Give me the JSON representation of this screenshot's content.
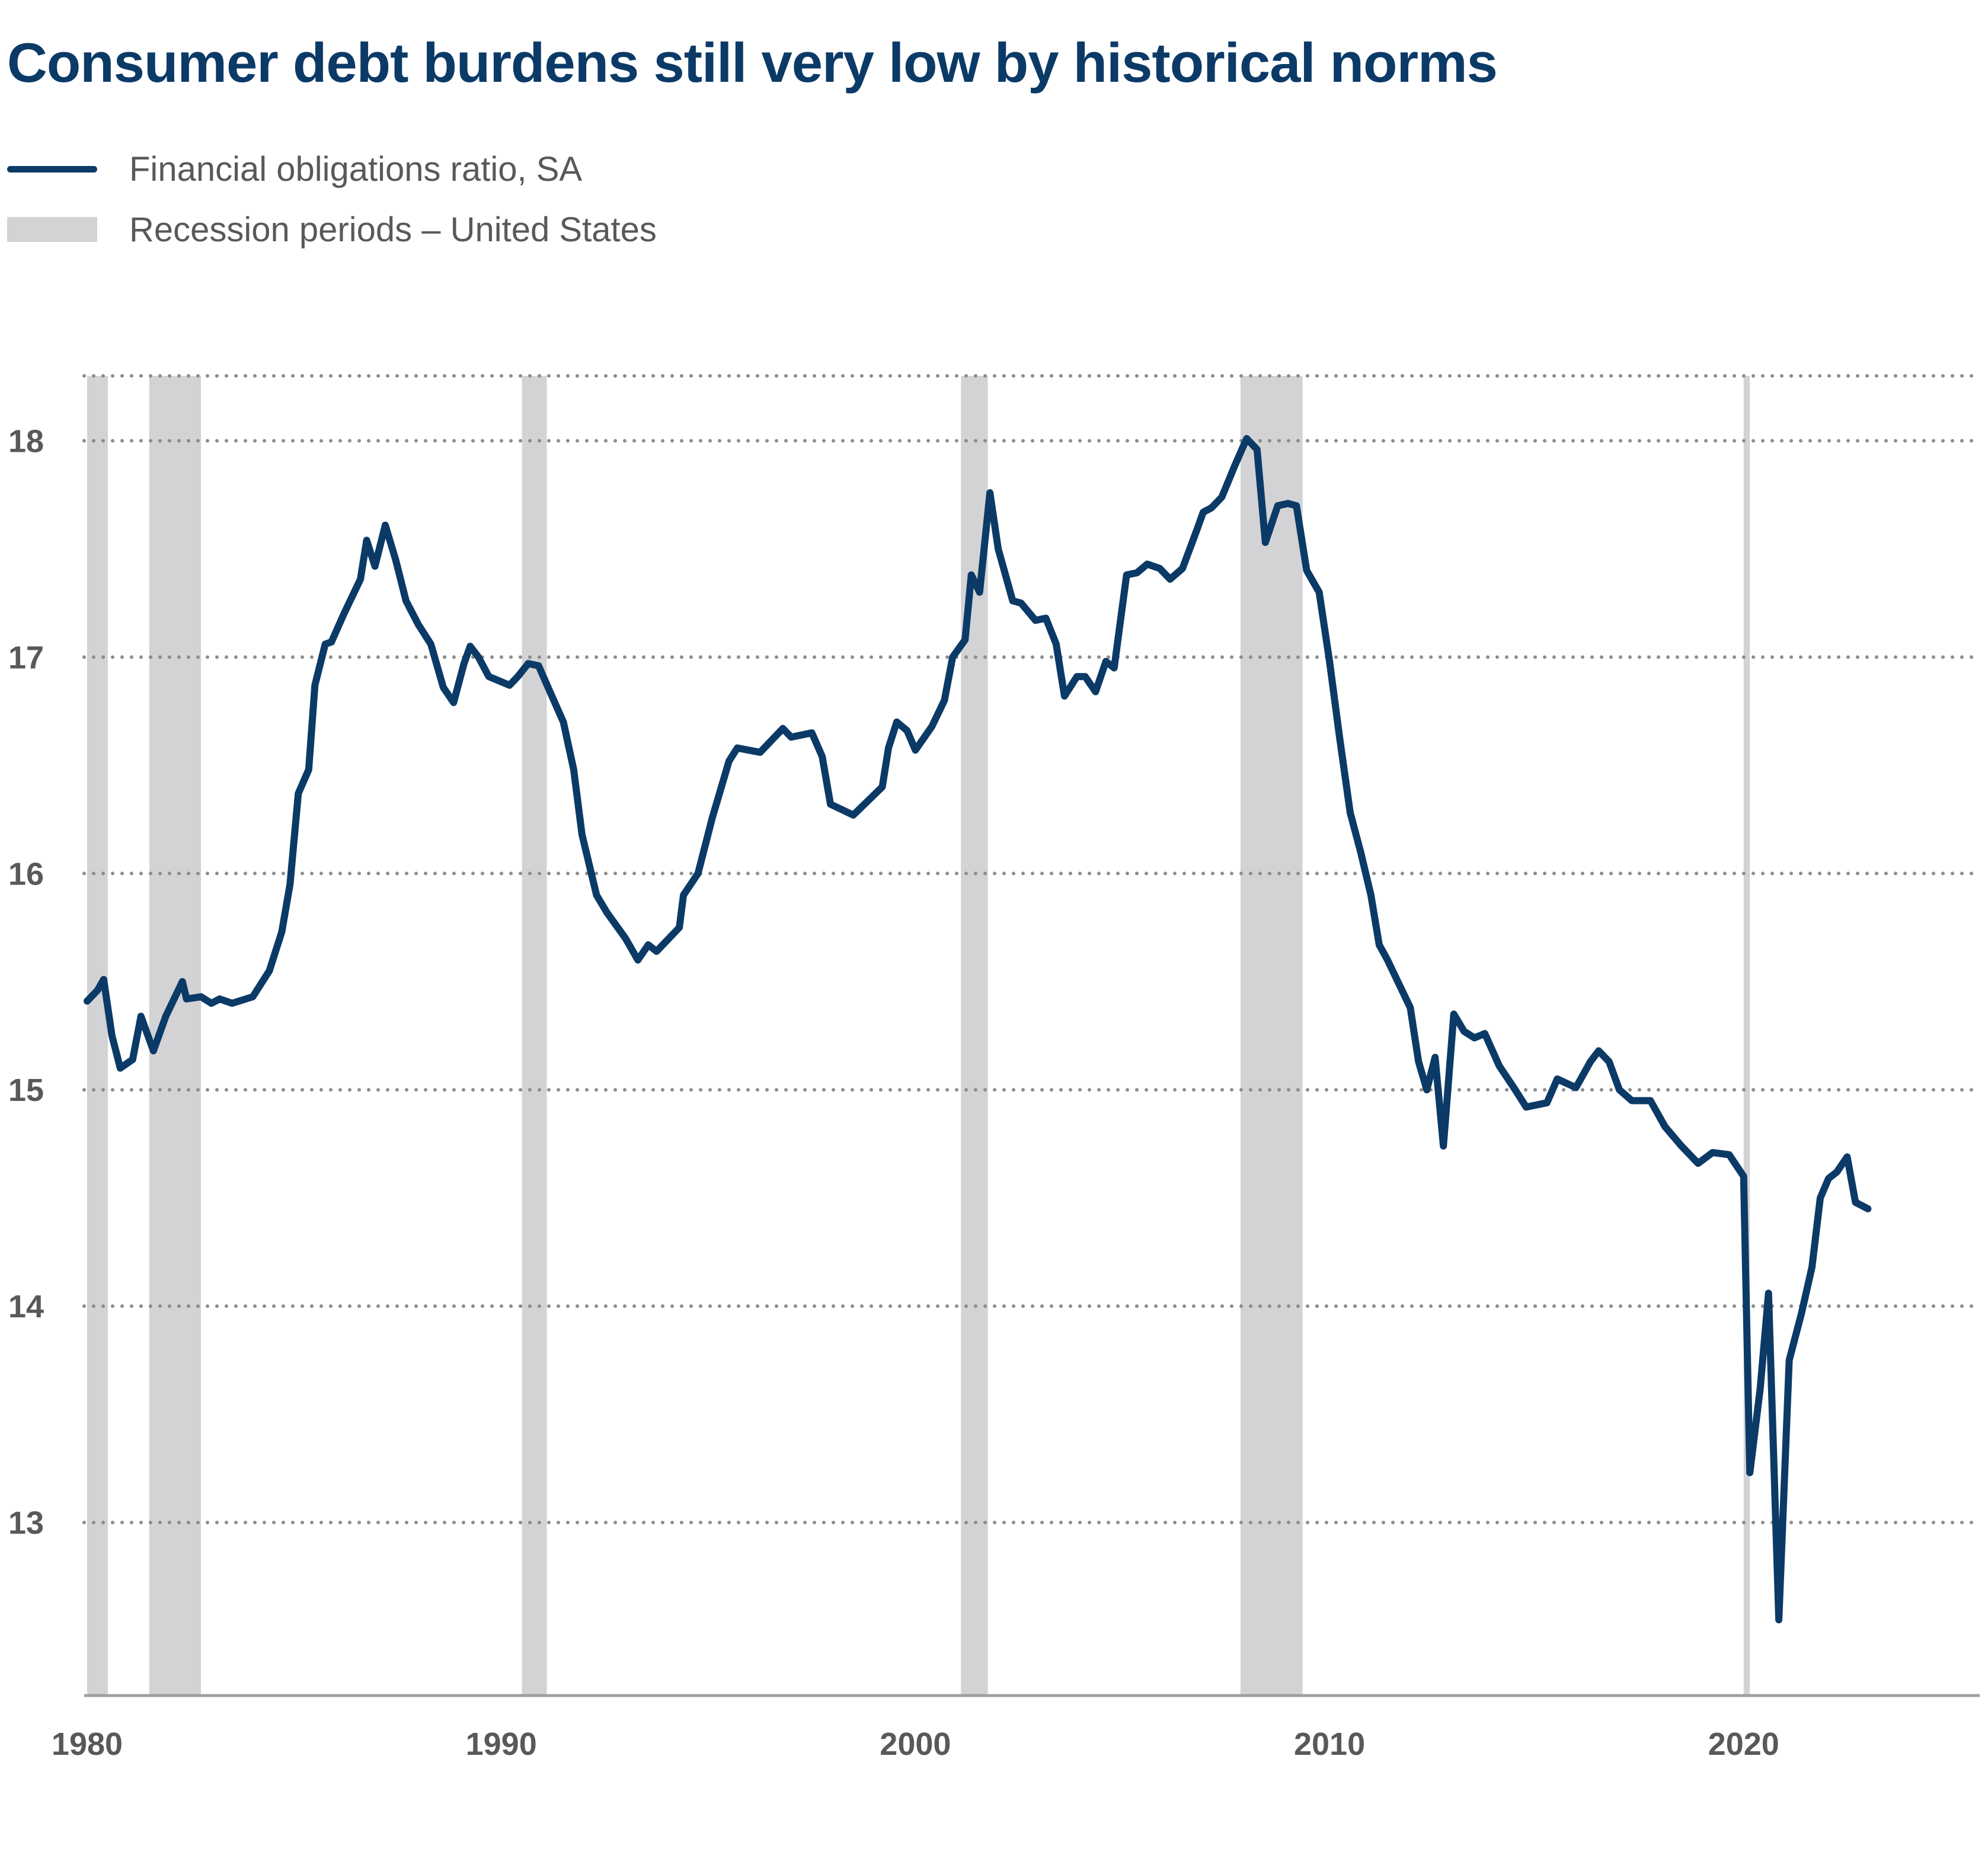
{
  "chart_data": {
    "type": "line",
    "title": "Consumer debt burdens still very low by historical norms",
    "xlabel": "",
    "ylabel": "",
    "x_ticks": [
      "1980",
      "1990",
      "2000",
      "2010",
      "2020"
    ],
    "y_ticks": [
      "13",
      "14",
      "15",
      "16",
      "17",
      "18"
    ],
    "xlim": [
      1979.9,
      2025.7
    ],
    "ylim": [
      12.2,
      18.3
    ],
    "grid": "horizontal dotted",
    "legend": {
      "placement": "top-left",
      "line_label": "Financial obligations ratio, SA",
      "shade_label": "Recession periods – United States"
    },
    "colors": {
      "line": "#0b3a67",
      "recession": "#d3d3d5",
      "grid": "#8c8c8c",
      "axis": "#a0a0a0",
      "text": "#58595b"
    },
    "recessions": [
      [
        1980.0,
        1980.5
      ],
      [
        1981.5,
        1982.75
      ],
      [
        1990.5,
        1991.1
      ],
      [
        2001.1,
        2001.75
      ],
      [
        2007.85,
        2009.35
      ],
      [
        2020.0,
        2020.15
      ]
    ],
    "series": [
      {
        "name": "Financial obligations ratio, SA",
        "points": [
          [
            1980.0,
            15.41
          ],
          [
            1980.25,
            15.46
          ],
          [
            1980.4,
            15.51
          ],
          [
            1980.6,
            15.25
          ],
          [
            1980.8,
            15.1
          ],
          [
            1981.1,
            15.14
          ],
          [
            1981.3,
            15.34
          ],
          [
            1981.6,
            15.18
          ],
          [
            1981.9,
            15.34
          ],
          [
            1982.1,
            15.42
          ],
          [
            1982.3,
            15.5
          ],
          [
            1982.4,
            15.42
          ],
          [
            1982.75,
            15.43
          ],
          [
            1983.0,
            15.4
          ],
          [
            1983.2,
            15.42
          ],
          [
            1983.5,
            15.4
          ],
          [
            1984.0,
            15.43
          ],
          [
            1984.4,
            15.55
          ],
          [
            1984.7,
            15.73
          ],
          [
            1984.9,
            15.95
          ],
          [
            1985.1,
            16.37
          ],
          [
            1985.35,
            16.48
          ],
          [
            1985.5,
            16.87
          ],
          [
            1985.75,
            17.06
          ],
          [
            1985.9,
            17.07
          ],
          [
            1986.2,
            17.2
          ],
          [
            1986.6,
            17.36
          ],
          [
            1986.75,
            17.54
          ],
          [
            1986.95,
            17.42
          ],
          [
            1987.2,
            17.61
          ],
          [
            1987.45,
            17.45
          ],
          [
            1987.7,
            17.26
          ],
          [
            1988.0,
            17.15
          ],
          [
            1988.3,
            17.06
          ],
          [
            1988.6,
            16.86
          ],
          [
            1988.85,
            16.79
          ],
          [
            1989.1,
            16.97
          ],
          [
            1989.25,
            17.05
          ],
          [
            1989.45,
            17.0
          ],
          [
            1989.7,
            16.91
          ],
          [
            1990.2,
            16.87
          ],
          [
            1990.4,
            16.91
          ],
          [
            1990.65,
            16.97
          ],
          [
            1990.9,
            16.96
          ],
          [
            1991.2,
            16.83
          ],
          [
            1991.5,
            16.7
          ],
          [
            1991.75,
            16.48
          ],
          [
            1991.95,
            16.18
          ],
          [
            1992.3,
            15.9
          ],
          [
            1992.55,
            15.82
          ],
          [
            1993.0,
            15.7
          ],
          [
            1993.3,
            15.6
          ],
          [
            1993.55,
            15.67
          ],
          [
            1993.75,
            15.64
          ],
          [
            1994.3,
            15.75
          ],
          [
            1994.4,
            15.9
          ],
          [
            1994.75,
            16.0
          ],
          [
            1995.1,
            16.26
          ],
          [
            1995.5,
            16.52
          ],
          [
            1995.7,
            16.58
          ],
          [
            1996.25,
            16.56
          ],
          [
            1996.8,
            16.67
          ],
          [
            1997.0,
            16.63
          ],
          [
            1997.5,
            16.65
          ],
          [
            1997.75,
            16.54
          ],
          [
            1997.95,
            16.32
          ],
          [
            1998.5,
            16.27
          ],
          [
            1999.2,
            16.4
          ],
          [
            1999.35,
            16.58
          ],
          [
            1999.55,
            16.7
          ],
          [
            1999.8,
            16.66
          ],
          [
            2000.0,
            16.57
          ],
          [
            2000.4,
            16.68
          ],
          [
            2000.7,
            16.8
          ],
          [
            2000.9,
            17.0
          ],
          [
            2001.2,
            17.08
          ],
          [
            2001.35,
            17.38
          ],
          [
            2001.55,
            17.3
          ],
          [
            2001.8,
            17.76
          ],
          [
            2002.0,
            17.5
          ],
          [
            2002.35,
            17.26
          ],
          [
            2002.55,
            17.25
          ],
          [
            2002.9,
            17.17
          ],
          [
            2003.15,
            17.18
          ],
          [
            2003.4,
            17.06
          ],
          [
            2003.6,
            16.82
          ],
          [
            2003.9,
            16.91
          ],
          [
            2004.1,
            16.91
          ],
          [
            2004.35,
            16.84
          ],
          [
            2004.6,
            16.98
          ],
          [
            2004.8,
            16.95
          ],
          [
            2005.1,
            17.38
          ],
          [
            2005.35,
            17.39
          ],
          [
            2005.6,
            17.43
          ],
          [
            2005.9,
            17.41
          ],
          [
            2006.15,
            17.36
          ],
          [
            2006.45,
            17.41
          ],
          [
            2006.8,
            17.59
          ],
          [
            2006.95,
            17.67
          ],
          [
            2007.15,
            17.69
          ],
          [
            2007.4,
            17.74
          ],
          [
            2007.7,
            17.88
          ],
          [
            2008.0,
            18.01
          ],
          [
            2008.25,
            17.96
          ],
          [
            2008.45,
            17.53
          ],
          [
            2008.75,
            17.7
          ],
          [
            2009.0,
            17.71
          ],
          [
            2009.2,
            17.7
          ],
          [
            2009.45,
            17.4
          ],
          [
            2009.75,
            17.3
          ],
          [
            2010.0,
            16.98
          ],
          [
            2010.25,
            16.62
          ],
          [
            2010.5,
            16.28
          ],
          [
            2010.75,
            16.1
          ],
          [
            2011.0,
            15.9
          ],
          [
            2011.2,
            15.67
          ],
          [
            2011.4,
            15.6
          ],
          [
            2011.7,
            15.48
          ],
          [
            2011.95,
            15.38
          ],
          [
            2012.15,
            15.13
          ],
          [
            2012.35,
            15.0
          ],
          [
            2012.55,
            15.15
          ],
          [
            2012.75,
            14.74
          ],
          [
            2013.0,
            15.35
          ],
          [
            2013.25,
            15.27
          ],
          [
            2013.5,
            15.24
          ],
          [
            2013.75,
            15.26
          ],
          [
            2014.1,
            15.11
          ],
          [
            2014.45,
            15.01
          ],
          [
            2014.75,
            14.92
          ],
          [
            2015.25,
            14.94
          ],
          [
            2015.5,
            15.05
          ],
          [
            2015.95,
            15.01
          ],
          [
            2016.3,
            15.13
          ],
          [
            2016.5,
            15.18
          ],
          [
            2016.75,
            15.13
          ],
          [
            2017.0,
            15.0
          ],
          [
            2017.3,
            14.95
          ],
          [
            2017.75,
            14.95
          ],
          [
            2018.1,
            14.83
          ],
          [
            2018.5,
            14.74
          ],
          [
            2018.9,
            14.66
          ],
          [
            2019.25,
            14.71
          ],
          [
            2019.65,
            14.7
          ],
          [
            2020.0,
            14.6
          ],
          [
            2020.15,
            13.23
          ],
          [
            2020.4,
            13.62
          ],
          [
            2020.6,
            14.06
          ],
          [
            2020.85,
            12.55
          ],
          [
            2021.1,
            13.75
          ],
          [
            2021.4,
            13.97
          ],
          [
            2021.65,
            14.18
          ],
          [
            2021.85,
            14.5
          ],
          [
            2022.05,
            14.59
          ],
          [
            2022.25,
            14.62
          ],
          [
            2022.5,
            14.69
          ],
          [
            2022.7,
            14.48
          ],
          [
            2023.0,
            14.45
          ]
        ]
      }
    ]
  }
}
